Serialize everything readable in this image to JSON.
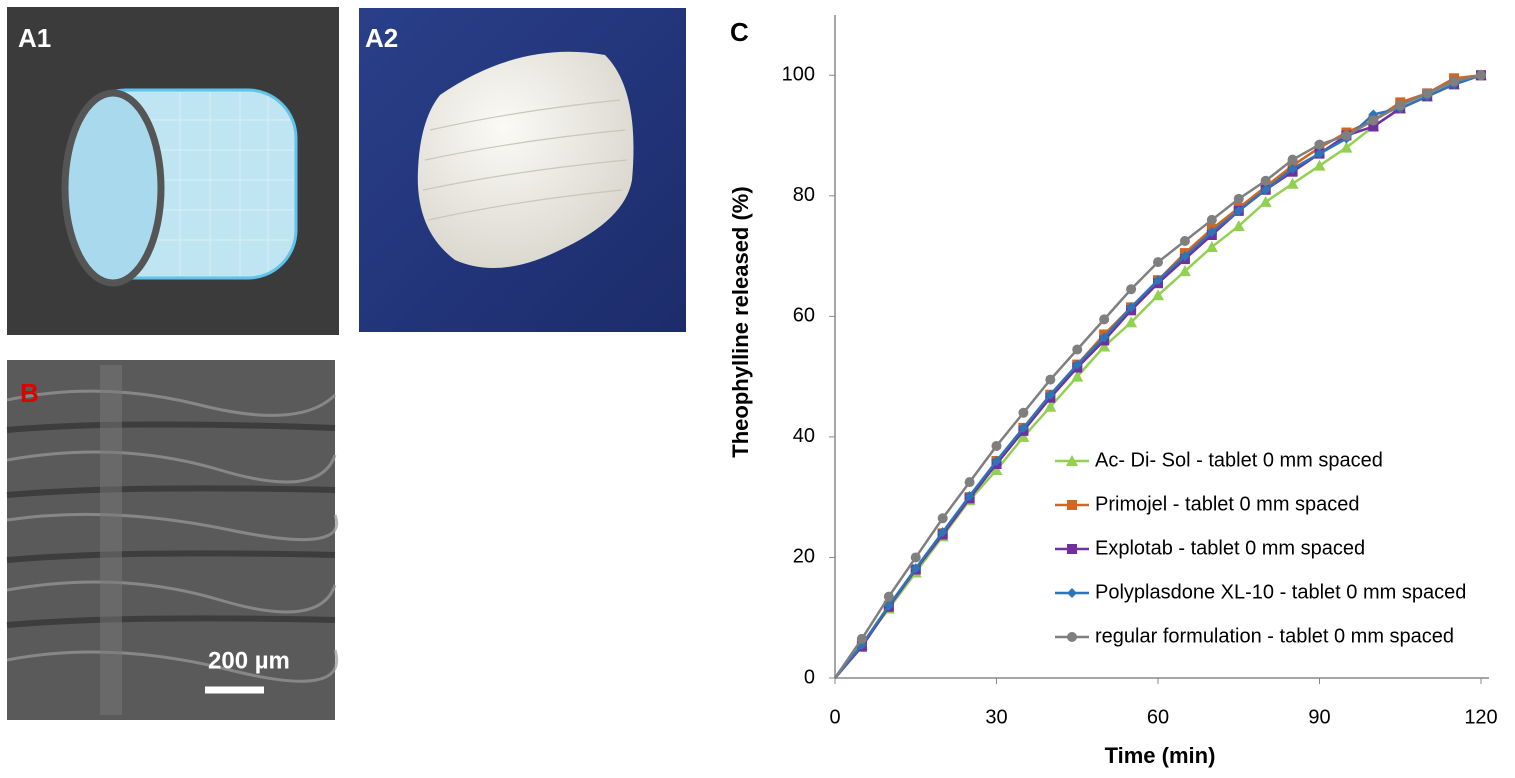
{
  "panels": {
    "a1": "A1",
    "a2": "A2",
    "b": "B",
    "scale_bar": "200 µm"
  },
  "chart_data": {
    "type": "line",
    "panel_label": "C",
    "x_label": "Time (min)",
    "y_label": "Theophylline released (%)",
    "x": [
      0,
      5,
      10,
      15,
      20,
      25,
      30,
      35,
      40,
      45,
      50,
      55,
      60,
      65,
      70,
      75,
      80,
      85,
      90,
      95,
      100,
      105,
      110,
      115,
      120
    ],
    "xlim": [
      0,
      120
    ],
    "xticks": [
      0,
      30,
      60,
      90,
      120
    ],
    "ylim": [
      0,
      110
    ],
    "yticks": [
      0,
      20,
      40,
      60,
      80,
      100
    ],
    "grid": false,
    "legend": "lower right",
    "series": [
      {
        "name": "Ac- Di- Sol - tablet 0 mm spaced",
        "color": "#92d050",
        "marker": "triangle",
        "values": [
          0,
          5.5,
          11.5,
          17.5,
          23.5,
          29.5,
          34.5,
          40,
          45,
          50,
          55,
          59,
          63.5,
          67.5,
          71.5,
          75,
          79,
          82,
          85,
          88,
          91.5,
          94.5,
          96.5,
          98.5,
          100
        ]
      },
      {
        "name": "Primojel - tablet 0 mm spaced",
        "color": "#d0661f",
        "marker": "square",
        "values": [
          0,
          5.5,
          12,
          18,
          24,
          30,
          36,
          41.5,
          47,
          52,
          57,
          61.5,
          66,
          70.5,
          74.5,
          78,
          81.5,
          85,
          88,
          90.5,
          92.5,
          95.5,
          97,
          99.5,
          100
        ]
      },
      {
        "name": "Explotab - tablet 0 mm spaced",
        "color": "#7030a0",
        "marker": "square",
        "values": [
          0,
          5.2,
          11.8,
          18,
          23.8,
          29.8,
          35.5,
          41,
          46.5,
          51.5,
          56,
          61,
          65.5,
          69.5,
          73.5,
          77.5,
          81,
          84,
          87,
          90,
          91.5,
          94.5,
          96.5,
          98.5,
          100
        ]
      },
      {
        "name": "Polyplasdone XL-10 - tablet 0 mm spaced",
        "color": "#2e75b6",
        "marker": "diamond",
        "values": [
          0,
          5.5,
          12,
          18.2,
          24.2,
          30.2,
          36,
          41.5,
          47,
          52,
          56.5,
          61.5,
          66,
          70,
          74,
          77.5,
          81,
          84.5,
          87,
          89.5,
          93.5,
          94.5,
          96.5,
          98.5,
          100
        ]
      },
      {
        "name": "regular formulation - tablet 0 mm spaced",
        "color": "#7f7f7f",
        "marker": "circle",
        "values": [
          0,
          6.5,
          13.5,
          20,
          26.5,
          32.5,
          38.5,
          44,
          49.5,
          54.5,
          59.5,
          64.5,
          69,
          72.5,
          76,
          79.5,
          82.5,
          86,
          88.5,
          90,
          92.5,
          95,
          97,
          99,
          100
        ]
      }
    ]
  }
}
